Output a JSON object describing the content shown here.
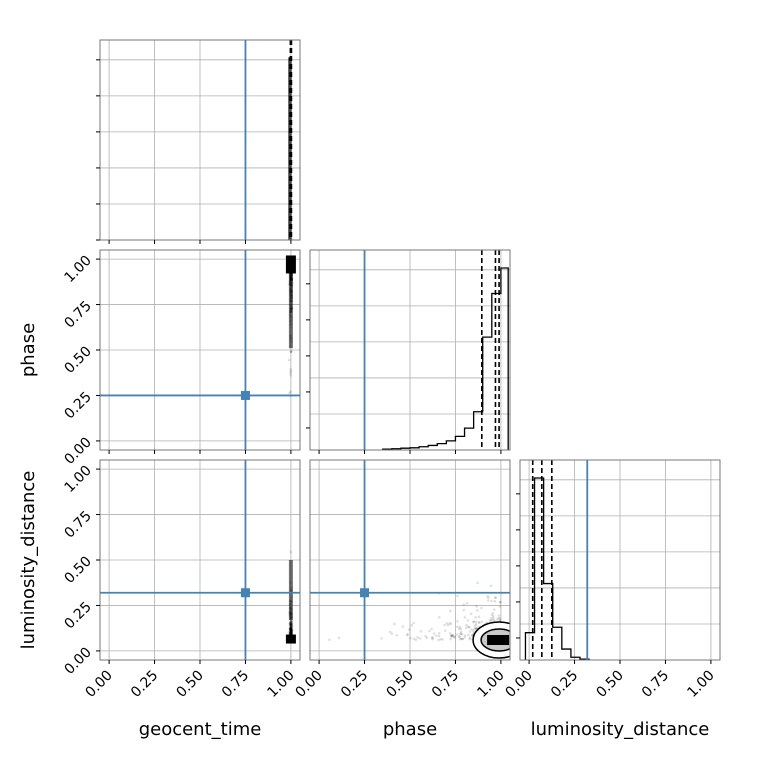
{
  "chart_data": {
    "type": "corner",
    "parameters": [
      "geocent_time",
      "phase",
      "luminosity_distance"
    ],
    "axis_labels": {
      "geocent_time": "geocent_time",
      "phase": "phase",
      "luminosity_distance": "luminosity_distance"
    },
    "tick_values": [
      0.0,
      0.25,
      0.5,
      0.75,
      1.0
    ],
    "tick_labels": [
      "0.00",
      "0.25",
      "0.50",
      "0.75",
      "1.00"
    ],
    "range": [
      -0.05,
      1.05
    ],
    "grid": true,
    "truths": {
      "geocent_time": 0.75,
      "phase": 0.25,
      "luminosity_distance": 0.32
    },
    "truth_color": "#4682b4",
    "quantile_lines": {
      "geocent_time": [
        0.997,
        1.0,
        1.003
      ],
      "phase": [
        0.895,
        0.97,
        0.99
      ],
      "luminosity_distance": [
        0.02,
        0.07,
        0.125
      ]
    },
    "histograms": {
      "geocent_time": {
        "bin_edges": [
          0.99,
          1.0,
          1.013
        ],
        "counts": [
          1.0,
          0.0
        ]
      },
      "phase": {
        "bin_edges": [
          0.35,
          0.4,
          0.45,
          0.5,
          0.55,
          0.6,
          0.65,
          0.7,
          0.75,
          0.8,
          0.85,
          0.9,
          0.95,
          1.0,
          1.04
        ],
        "counts": [
          0.005,
          0.007,
          0.01,
          0.012,
          0.018,
          0.025,
          0.035,
          0.05,
          0.075,
          0.12,
          0.21,
          0.62,
          0.86,
          1.0
        ]
      },
      "luminosity_distance": {
        "bin_edges": [
          -0.02,
          0.03,
          0.08,
          0.13,
          0.18,
          0.23,
          0.28,
          0.33
        ],
        "counts": [
          0.15,
          1.0,
          0.42,
          0.18,
          0.06,
          0.015,
          0.005
        ]
      }
    },
    "scatter_centers": {
      "phase_vs_geocent_time": [
        1.0,
        0.98
      ],
      "luminosity_distance_vs_geocent_time": [
        1.0,
        0.06
      ],
      "luminosity_distance_vs_phase": [
        0.99,
        0.06
      ]
    },
    "legend": "none"
  }
}
